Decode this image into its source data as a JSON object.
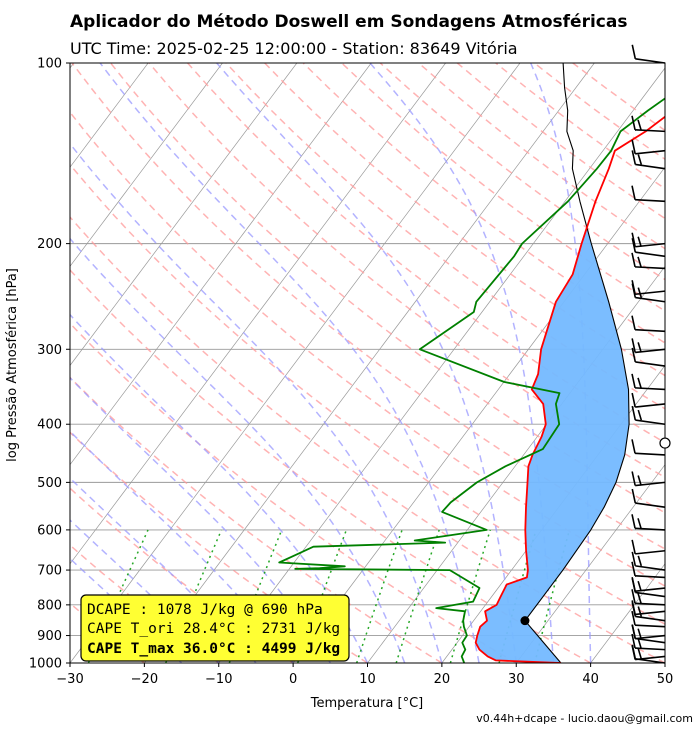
{
  "title": "Aplicador do Método Doswell em Sondagens Atmosféricas",
  "subtitle": "UTC Time: 2025-02-25 12:00:00 - Station: 83649 Vitória",
  "footer": "v0.44h+dcape  -  lucio.daou@gmail.com",
  "colors": {
    "temperature": "#ff0000",
    "dewpoint": "#008000",
    "parcel": "#000000",
    "cape_fill": "#74b9ff",
    "dry_adiabat": "#ff9999",
    "moist_adiabat": "#9999ff",
    "mixing_ratio": "#009900",
    "isotherm": "#999999",
    "box_bg": "#ffff33"
  },
  "info_box": {
    "lines": [
      "DCAPE : 1078 J/kg @ 690 hPa",
      "CAPE T_ori 28.4°C : 2731 J/kg",
      "CAPE T_max 36.0°C : 4499 J/kg"
    ]
  },
  "chart_data": {
    "type": "skew-t",
    "xlabel": "Temperatura [°C]",
    "ylabel": "log Pressão Atmosférica [hPa]",
    "xlim": [
      -30,
      50
    ],
    "ylim": [
      1000,
      100
    ],
    "y_scale": "log",
    "grid": true,
    "xticks": [
      -30,
      -20,
      -10,
      0,
      10,
      20,
      30,
      40,
      50
    ],
    "yticks": [
      100,
      200,
      300,
      400,
      500,
      600,
      700,
      800,
      900,
      1000
    ],
    "temperature": [
      [
        1000,
        36.0
      ],
      [
        990,
        27.0
      ],
      [
        975,
        25.5
      ],
      [
        950,
        23.7
      ],
      [
        925,
        22.5
      ],
      [
        900,
        22.0
      ],
      [
        870,
        21.5
      ],
      [
        850,
        21.8
      ],
      [
        820,
        20.6
      ],
      [
        800,
        21.5
      ],
      [
        775,
        21.2
      ],
      [
        740,
        20.8
      ],
      [
        720,
        22.8
      ],
      [
        700,
        22.2
      ],
      [
        650,
        20.0
      ],
      [
        620,
        18.7
      ],
      [
        600,
        17.8
      ],
      [
        550,
        15.6
      ],
      [
        500,
        13.3
      ],
      [
        470,
        11.8
      ],
      [
        450,
        11.2
      ],
      [
        420,
        10.6
      ],
      [
        400,
        9.9
      ],
      [
        370,
        7.5
      ],
      [
        350,
        4.5
      ],
      [
        330,
        3.8
      ],
      [
        300,
        1.7
      ],
      [
        250,
        -1.1
      ],
      [
        225,
        -1.6
      ],
      [
        200,
        -3.5
      ],
      [
        170,
        -5.9
      ],
      [
        150,
        -7.4
      ],
      [
        140,
        -8.4
      ],
      [
        130,
        -6.2
      ],
      [
        120,
        -4.6
      ],
      [
        100,
        -6.7
      ]
    ],
    "dewpoint": [
      [
        1000,
        23.0
      ],
      [
        975,
        22.0
      ],
      [
        950,
        21.8
      ],
      [
        925,
        20.7
      ],
      [
        900,
        20.6
      ],
      [
        870,
        19.3
      ],
      [
        850,
        18.6
      ],
      [
        820,
        17.9
      ],
      [
        810,
        13.7
      ],
      [
        790,
        18.0
      ],
      [
        750,
        17.5
      ],
      [
        700,
        11.7
      ],
      [
        697,
        -9.2
      ],
      [
        695,
        -6.0
      ],
      [
        690,
        -2.8
      ],
      [
        680,
        -12.0
      ],
      [
        660,
        -10.5
      ],
      [
        640,
        -9.0
      ],
      [
        630,
        8.3
      ],
      [
        625,
        4.0
      ],
      [
        600,
        12.6
      ],
      [
        560,
        4.8
      ],
      [
        540,
        5.0
      ],
      [
        500,
        6.5
      ],
      [
        470,
        8.7
      ],
      [
        440,
        12.0
      ],
      [
        400,
        11.7
      ],
      [
        370,
        9.2
      ],
      [
        355,
        8.6
      ],
      [
        340,
        0.0
      ],
      [
        300,
        -14.6
      ],
      [
        260,
        -11.1
      ],
      [
        250,
        -11.8
      ],
      [
        210,
        -11.3
      ],
      [
        200,
        -11.5
      ],
      [
        170,
        -9.6
      ],
      [
        150,
        -9.0
      ],
      [
        140,
        -8.9
      ],
      [
        130,
        -9.6
      ],
      [
        120,
        -8.0
      ],
      [
        100,
        -3.8
      ]
    ],
    "parcel": [
      [
        1000,
        36.0
      ],
      [
        850,
        26.9
      ],
      [
        800,
        26.9
      ],
      [
        700,
        26.9
      ],
      [
        600,
        26.6
      ],
      [
        550,
        26.1
      ],
      [
        500,
        25.2
      ],
      [
        450,
        23.6
      ],
      [
        400,
        21.1
      ],
      [
        350,
        17.5
      ],
      [
        300,
        12.5
      ],
      [
        250,
        6.0
      ],
      [
        200,
        -2.2
      ],
      [
        170,
        -8.0
      ],
      [
        150,
        -12.3
      ],
      [
        140,
        -14.0
      ],
      [
        130,
        -16.8
      ],
      [
        120,
        -18.8
      ],
      [
        110,
        -21.5
      ],
      [
        100,
        -24.2
      ]
    ],
    "lcl": [
      850,
      26.9
    ],
    "wind_barbs_hPa": [
      1000,
      975,
      950,
      925,
      900,
      870,
      850,
      820,
      800,
      775,
      750,
      720,
      700,
      650,
      600,
      550,
      500,
      450,
      400,
      370,
      350,
      320,
      300,
      280,
      250,
      240,
      220,
      210,
      200,
      170,
      150,
      140,
      130,
      100
    ],
    "calm_marker_hPa": 430
  }
}
